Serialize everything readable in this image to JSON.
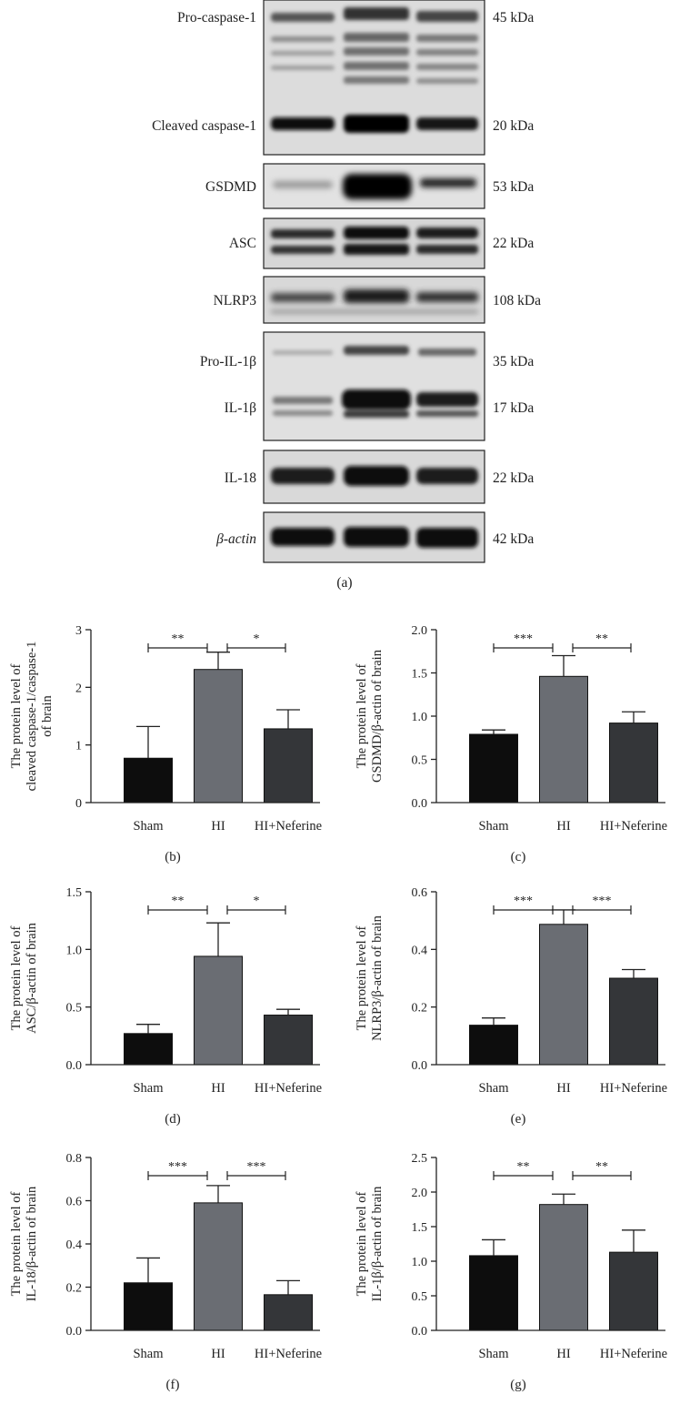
{
  "blot": {
    "panel_label": "(a)",
    "lanes": 3,
    "rows": [
      {
        "id": "casp",
        "labels": [
          "Pro-caspase-1",
          "Cleaved caspase-1"
        ],
        "kda": [
          "45 kDa",
          "20 kDa"
        ]
      },
      {
        "id": "gsdmd",
        "labels": [
          "GSDMD"
        ],
        "kda": [
          "53 kDa"
        ]
      },
      {
        "id": "asc",
        "labels": [
          "ASC"
        ],
        "kda": [
          "22 kDa"
        ]
      },
      {
        "id": "nlrp3",
        "labels": [
          "NLRP3"
        ],
        "kda": [
          "108 kDa"
        ]
      },
      {
        "id": "il1b",
        "labels": [
          "Pro-IL-1β",
          "IL-1β"
        ],
        "kda": [
          "35 kDa",
          "17 kDa"
        ]
      },
      {
        "id": "il18",
        "labels": [
          "IL-18"
        ],
        "kda": [
          "22 kDa"
        ]
      },
      {
        "id": "actin",
        "labels": [
          "β-actin"
        ],
        "kda": [
          "42 kDa"
        ]
      }
    ]
  },
  "chart_data": [
    {
      "panel": "(b)",
      "type": "bar",
      "categories": [
        "Sham",
        "HI",
        "HI+Neferine"
      ],
      "ylabel": [
        "The protein level of",
        "cleaved caspase-1/caspase-1",
        "of brain"
      ],
      "ylim": [
        0,
        3
      ],
      "ticks": [
        "0",
        "1",
        "2",
        "3"
      ],
      "values": [
        0.77,
        2.31,
        1.28
      ],
      "errors": [
        0.55,
        0.3,
        0.33
      ],
      "colors": [
        "#0d0d0d",
        "#6a6d73",
        "#343639"
      ],
      "significance": [
        {
          "from": 0,
          "to": 1,
          "label": "**"
        },
        {
          "from": 1,
          "to": 2,
          "label": "*"
        }
      ]
    },
    {
      "panel": "(c)",
      "type": "bar",
      "categories": [
        "Sham",
        "HI",
        "HI+Neferine"
      ],
      "ylabel": [
        "The protein level of",
        "GSDMD/β-actin of brain"
      ],
      "ylim": [
        0,
        2
      ],
      "ticks": [
        "0.0",
        "0.5",
        "1.0",
        "1.5",
        "2.0"
      ],
      "values": [
        0.79,
        1.46,
        0.92
      ],
      "errors": [
        0.05,
        0.24,
        0.13
      ],
      "colors": [
        "#0d0d0d",
        "#6a6d73",
        "#343639"
      ],
      "significance": [
        {
          "from": 0,
          "to": 1,
          "label": "***"
        },
        {
          "from": 1,
          "to": 2,
          "label": "**"
        }
      ]
    },
    {
      "panel": "(d)",
      "type": "bar",
      "categories": [
        "Sham",
        "HI",
        "HI+Neferine"
      ],
      "ylabel": [
        "The protein level of",
        "ASC/β-actin of brain"
      ],
      "ylim": [
        0,
        1.5
      ],
      "ticks": [
        "0.0",
        "0.5",
        "1.0",
        "1.5"
      ],
      "values": [
        0.27,
        0.94,
        0.43
      ],
      "errors": [
        0.08,
        0.29,
        0.05
      ],
      "colors": [
        "#0d0d0d",
        "#6a6d73",
        "#343639"
      ],
      "significance": [
        {
          "from": 0,
          "to": 1,
          "label": "**"
        },
        {
          "from": 1,
          "to": 2,
          "label": "*"
        }
      ]
    },
    {
      "panel": "(e)",
      "type": "bar",
      "categories": [
        "Sham",
        "HI",
        "HI+Neferine"
      ],
      "ylabel": [
        "The protein level of",
        "NLRP3/β-actin of brain"
      ],
      "ylim": [
        0,
        0.6
      ],
      "ticks": [
        "0.0",
        "0.2",
        "0.4",
        "0.6"
      ],
      "values": [
        0.137,
        0.487,
        0.3
      ],
      "errors": [
        0.025,
        0.05,
        0.03
      ],
      "colors": [
        "#0d0d0d",
        "#6a6d73",
        "#343639"
      ],
      "significance": [
        {
          "from": 0,
          "to": 1,
          "label": "***"
        },
        {
          "from": 1,
          "to": 2,
          "label": "***"
        }
      ]
    },
    {
      "panel": "(f)",
      "type": "bar",
      "categories": [
        "Sham",
        "HI",
        "HI+Neferine"
      ],
      "ylabel": [
        "The protein level of",
        "IL-18/β-actin of brain"
      ],
      "ylim": [
        0,
        0.8
      ],
      "ticks": [
        "0.0",
        "0.2",
        "0.4",
        "0.6",
        "0.8"
      ],
      "values": [
        0.22,
        0.59,
        0.165
      ],
      "errors": [
        0.115,
        0.08,
        0.065
      ],
      "colors": [
        "#0d0d0d",
        "#6a6d73",
        "#343639"
      ],
      "significance": [
        {
          "from": 0,
          "to": 1,
          "label": "***"
        },
        {
          "from": 1,
          "to": 2,
          "label": "***"
        }
      ]
    },
    {
      "panel": "(g)",
      "type": "bar",
      "categories": [
        "Sham",
        "HI",
        "HI+Neferine"
      ],
      "ylabel": [
        "The protein level of",
        "IL-1β/β-actin of brain"
      ],
      "ylim": [
        0,
        2.5
      ],
      "ticks": [
        "0.0",
        "0.5",
        "1.0",
        "1.5",
        "2.0",
        "2.5"
      ],
      "values": [
        1.08,
        1.82,
        1.13
      ],
      "errors": [
        0.23,
        0.15,
        0.32
      ],
      "colors": [
        "#0d0d0d",
        "#6a6d73",
        "#343639"
      ],
      "significance": [
        {
          "from": 0,
          "to": 1,
          "label": "**"
        },
        {
          "from": 1,
          "to": 2,
          "label": "**"
        }
      ]
    }
  ]
}
